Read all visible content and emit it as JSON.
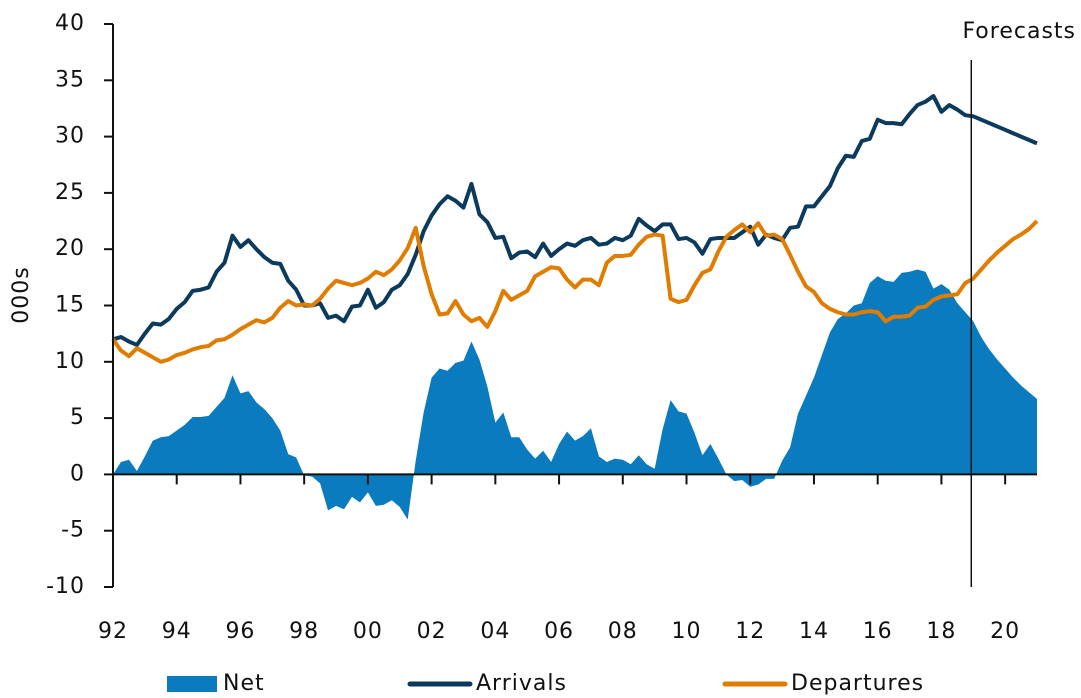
{
  "chart_data": {
    "type": "line",
    "y_label": "000s",
    "annotations": [
      {
        "text": "Forecasts",
        "x": 2019
      }
    ],
    "x": [
      1992,
      1992.25,
      1992.5,
      1992.75,
      1993,
      1993.25,
      1993.5,
      1993.75,
      1994,
      1994.25,
      1994.5,
      1994.75,
      1995,
      1995.25,
      1995.5,
      1995.75,
      1996,
      1996.25,
      1996.5,
      1996.75,
      1997,
      1997.25,
      1997.5,
      1997.75,
      1998,
      1998.25,
      1998.5,
      1998.75,
      1999,
      1999.25,
      1999.5,
      1999.75,
      2000,
      2000.25,
      2000.5,
      2000.75,
      2001,
      2001.25,
      2001.5,
      2001.75,
      2002,
      2002.25,
      2002.5,
      2002.75,
      2003,
      2003.25,
      2003.5,
      2003.75,
      2004,
      2004.25,
      2004.5,
      2004.75,
      2005,
      2005.25,
      2005.5,
      2005.75,
      2006,
      2006.25,
      2006.5,
      2006.75,
      2007,
      2007.25,
      2007.5,
      2007.75,
      2008,
      2008.25,
      2008.5,
      2008.75,
      2009,
      2009.25,
      2009.5,
      2009.75,
      2010,
      2010.25,
      2010.5,
      2010.75,
      2011,
      2011.25,
      2011.5,
      2011.75,
      2012,
      2012.25,
      2012.5,
      2012.75,
      2013,
      2013.25,
      2013.5,
      2013.75,
      2014,
      2014.25,
      2014.5,
      2014.75,
      2015,
      2015.25,
      2015.5,
      2015.75,
      2016,
      2016.25,
      2016.5,
      2016.75,
      2017,
      2017.25,
      2017.5,
      2017.75,
      2018,
      2018.25,
      2018.5,
      2018.75,
      2019,
      2019.25,
      2019.5,
      2019.75,
      2020,
      2020.25,
      2020.5,
      2020.75,
      2021
    ],
    "series": [
      {
        "name": "Net",
        "style": "area",
        "color": "#0a7bbf",
        "values": [
          0,
          1.1,
          1.3,
          0.3,
          1.6,
          3.0,
          3.3,
          3.4,
          3.9,
          4.4,
          5.1,
          5.1,
          5.2,
          6.0,
          6.8,
          8.8,
          7.2,
          7.4,
          6.4,
          5.8,
          5.0,
          3.9,
          1.8,
          1.5,
          -0.1,
          -0.2,
          -0.8,
          -3.2,
          -2.8,
          -3.1,
          -2.0,
          -2.5,
          -1.6,
          -2.8,
          -2.7,
          -2.3,
          -2.9,
          -4.0,
          1.2,
          5.5,
          8.6,
          9.4,
          9.2,
          9.9,
          10.1,
          11.8,
          10.2,
          7.8,
          4.6,
          5.5,
          3.3,
          3.3,
          2.2,
          1.4,
          2.1,
          1.1,
          2.7,
          3.8,
          3.0,
          3.4,
          4.1,
          1.6,
          1.1,
          1.4,
          1.3,
          0.9,
          1.7,
          0.9,
          0.5,
          4.0,
          6.6,
          5.6,
          5.4,
          3.7,
          1.7,
          2.7,
          1.4,
          0,
          -0.6,
          -0.5,
          -1.1,
          -0.9,
          -0.4,
          -0.4,
          1.2,
          2.4,
          5.4,
          7.0,
          8.6,
          10.6,
          12.6,
          13.8,
          14.3,
          15.0,
          15.2,
          17.0,
          17.6,
          17.2,
          17.1,
          17.9,
          18.0,
          18.2,
          18.0,
          16.5,
          16.9,
          16.4,
          15.2,
          14.4,
          13.6,
          12.2,
          11.1,
          10.2,
          9.4,
          8.6,
          7.9,
          7.3,
          6.7
        ]
      },
      {
        "name": "Arrivals",
        "style": "line",
        "color": "#0b3a5c",
        "values": [
          12,
          12.2,
          11.8,
          11.5,
          12.5,
          13.4,
          13.3,
          13.8,
          14.7,
          15.3,
          16.3,
          16.4,
          16.6,
          18,
          18.8,
          21.2,
          20.2,
          20.8,
          20,
          19.3,
          18.8,
          18.7,
          17.2,
          16.4,
          15,
          15,
          15.2,
          13.9,
          14.1,
          13.6,
          14.9,
          15,
          16.4,
          14.8,
          15.3,
          16.4,
          16.8,
          17.8,
          19.5,
          21.6,
          23,
          24,
          24.7,
          24.3,
          23.7,
          25.8,
          23.1,
          22.4,
          21,
          21.1,
          19.2,
          19.7,
          19.8,
          19.3,
          20.5,
          19.4,
          20,
          20.5,
          20.3,
          20.8,
          21,
          20.4,
          20.5,
          21,
          20.8,
          21.2,
          22.7,
          22.1,
          21.6,
          22.2,
          22.2,
          20.9,
          21,
          20.6,
          19.6,
          20.9,
          21,
          21,
          21,
          21.5,
          22,
          20.4,
          21.3,
          21,
          20.8,
          21.9,
          22,
          23.8,
          23.8,
          24.7,
          25.6,
          27.2,
          28.3,
          28.2,
          29.6,
          29.8,
          31.5,
          31.2,
          31.2,
          31.1,
          32,
          32.8,
          33.1,
          33.6,
          32.2,
          32.8,
          32.4,
          31.9,
          31.8,
          31.5,
          31.2,
          30.9,
          30.6,
          30.3,
          30,
          29.7,
          29.4
        ]
      },
      {
        "name": "Departures",
        "style": "line",
        "color": "#e07c00",
        "values": [
          12,
          11,
          10.5,
          11.2,
          10.8,
          10.4,
          10,
          10.2,
          10.6,
          10.8,
          11.1,
          11.3,
          11.4,
          11.9,
          12,
          12.4,
          12.9,
          13.3,
          13.7,
          13.5,
          13.9,
          14.8,
          15.4,
          15,
          15.1,
          15,
          15.6,
          16.5,
          17.2,
          17,
          16.8,
          17,
          17.4,
          18,
          17.7,
          18.2,
          19,
          20.1,
          21.9,
          18.5,
          16,
          14.2,
          14.3,
          15.4,
          14.2,
          13.6,
          13.9,
          13.1,
          14.5,
          16.3,
          15.5,
          15.9,
          16.3,
          17.6,
          18,
          18.4,
          18.3,
          17.3,
          16.6,
          17.3,
          17.3,
          16.8,
          18.8,
          19.4,
          19.4,
          19.5,
          20.4,
          21.1,
          21.3,
          21.2,
          15.6,
          15.3,
          15.5,
          16.8,
          17.9,
          18.2,
          19.8,
          21.1,
          21.7,
          22.2,
          21.5,
          22.3,
          21.2,
          21.3,
          20.9,
          19.5,
          18,
          16.7,
          16.2,
          15.2,
          14.7,
          14.4,
          14.2,
          14.2,
          14.4,
          14.5,
          14.4,
          13.6,
          14,
          14,
          14.1,
          14.8,
          14.9,
          15.5,
          15.8,
          15.9,
          16,
          17,
          17.4,
          18.2,
          19,
          19.7,
          20.3,
          20.9,
          21.3,
          21.8,
          22.5
        ]
      }
    ],
    "xlim": [
      1992,
      2021
    ],
    "xticks": [
      {
        "value": 1992,
        "label": "92"
      },
      {
        "value": 1994,
        "label": "94"
      },
      {
        "value": 1996,
        "label": "96"
      },
      {
        "value": 1998,
        "label": "98"
      },
      {
        "value": 2000,
        "label": "00"
      },
      {
        "value": 2002,
        "label": "02"
      },
      {
        "value": 2004,
        "label": "04"
      },
      {
        "value": 2006,
        "label": "06"
      },
      {
        "value": 2008,
        "label": "08"
      },
      {
        "value": 2010,
        "label": "10"
      },
      {
        "value": 2012,
        "label": "12"
      },
      {
        "value": 2014,
        "label": "14"
      },
      {
        "value": 2016,
        "label": "16"
      },
      {
        "value": 2018,
        "label": "18"
      },
      {
        "value": 2020,
        "label": "20"
      }
    ],
    "ylim": [
      -10,
      40
    ],
    "yticks": [
      -10,
      -5,
      0,
      5,
      10,
      15,
      20,
      25,
      30,
      35,
      40
    ],
    "grid": false
  }
}
